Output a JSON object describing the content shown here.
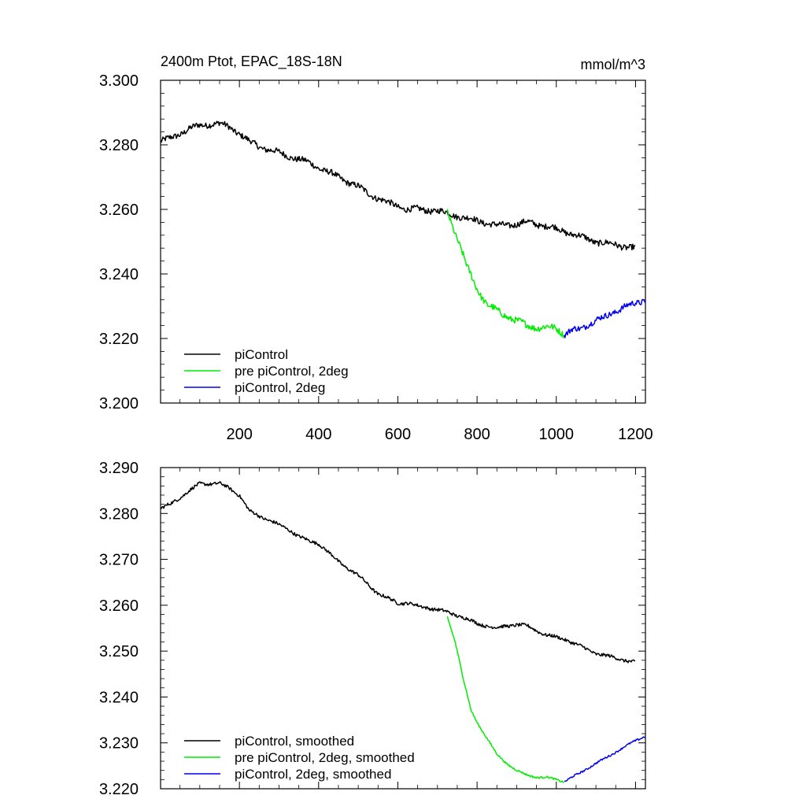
{
  "chart_data": [
    {
      "type": "line",
      "title_left": "2400m Ptot, EPAC_18S-18N",
      "title_right": "mmol/m^3",
      "xlim": [
        1,
        1225
      ],
      "ylim": [
        3.2,
        3.3
      ],
      "y_ticks": [
        {
          "value": 3.2,
          "label": "3.200"
        },
        {
          "value": 3.22,
          "label": "3.220"
        },
        {
          "value": 3.24,
          "label": "3.240"
        },
        {
          "value": 3.26,
          "label": "3.260"
        },
        {
          "value": 3.28,
          "label": "3.280"
        },
        {
          "value": 3.3,
          "label": "3.300"
        }
      ],
      "x_ticks": [
        {
          "value": 200,
          "label": "200"
        },
        {
          "value": 400,
          "label": "400"
        },
        {
          "value": 600,
          "label": "600"
        },
        {
          "value": 800,
          "label": "800"
        },
        {
          "value": 1000,
          "label": "1000"
        },
        {
          "value": 1200,
          "label": "1200"
        }
      ],
      "series": [
        {
          "name": "piControl",
          "color": "#000000",
          "x": [
            1,
            25,
            50,
            75,
            100,
            125,
            150,
            175,
            200,
            225,
            250,
            275,
            300,
            325,
            350,
            375,
            400,
            425,
            450,
            475,
            500,
            525,
            550,
            575,
            600,
            625,
            650,
            675,
            700,
            725,
            750,
            775,
            800,
            825,
            850,
            875,
            900,
            925,
            950,
            975,
            1000,
            1025,
            1050,
            1075,
            1100,
            1125,
            1150,
            1175,
            1200
          ],
          "y": [
            3.281,
            3.282,
            3.2835,
            3.285,
            3.286,
            3.2865,
            3.2865,
            3.2855,
            3.2835,
            3.281,
            3.2795,
            3.2785,
            3.2775,
            3.2765,
            3.2755,
            3.2745,
            3.273,
            3.2715,
            3.27,
            3.2685,
            3.267,
            3.265,
            3.2635,
            3.262,
            3.261,
            3.26,
            3.26,
            3.2598,
            3.2595,
            3.2588,
            3.258,
            3.2572,
            3.2565,
            3.2558,
            3.255,
            3.2552,
            3.2555,
            3.256,
            3.2555,
            3.2548,
            3.254,
            3.253,
            3.252,
            3.251,
            3.25,
            3.2495,
            3.249,
            3.2485,
            3.248
          ]
        },
        {
          "name": "pre piControl, 2deg",
          "color": "#00ee00",
          "x": [
            725,
            750,
            775,
            800,
            825,
            850,
            875,
            900,
            925,
            950,
            975,
            1000,
            1020
          ],
          "y": [
            3.2595,
            3.251,
            3.242,
            3.2355,
            3.2305,
            3.2285,
            3.227,
            3.2255,
            3.224,
            3.2235,
            3.2235,
            3.223,
            3.2215
          ]
        },
        {
          "name": "piControl, 2deg",
          "color": "#0000ee",
          "x": [
            1020,
            1040,
            1060,
            1080,
            1100,
            1120,
            1140,
            1160,
            1180,
            1200,
            1225
          ],
          "y": [
            3.221,
            3.2225,
            3.223,
            3.2245,
            3.2255,
            3.2265,
            3.228,
            3.229,
            3.23,
            3.231,
            3.232
          ]
        }
      ],
      "noise": [
        0.0018,
        0.002,
        0.0018
      ],
      "legend": [
        {
          "label": "piControl",
          "color": "#000000"
        },
        {
          "label": "pre piControl, 2deg",
          "color": "#00ee00"
        },
        {
          "label": "piControl, 2deg",
          "color": "#0000ee"
        }
      ],
      "legend_placement": "bottom-left"
    },
    {
      "type": "line",
      "xlim": [
        1,
        1225
      ],
      "ylim": [
        3.22,
        3.29
      ],
      "y_ticks": [
        {
          "value": 3.22,
          "label": "3.220"
        },
        {
          "value": 3.23,
          "label": "3.230"
        },
        {
          "value": 3.24,
          "label": "3.240"
        },
        {
          "value": 3.25,
          "label": "3.250"
        },
        {
          "value": 3.26,
          "label": "3.260"
        },
        {
          "value": 3.27,
          "label": "3.270"
        },
        {
          "value": 3.28,
          "label": "3.280"
        },
        {
          "value": 3.29,
          "label": "3.290"
        }
      ],
      "x_ticks": [
        {
          "value": 200,
          "label": ""
        },
        {
          "value": 400,
          "label": ""
        },
        {
          "value": 600,
          "label": ""
        },
        {
          "value": 800,
          "label": ""
        },
        {
          "value": 1000,
          "label": ""
        },
        {
          "value": 1200,
          "label": ""
        }
      ],
      "series": [
        {
          "name": "piControl, smoothed",
          "color": "#000000",
          "x": [
            1,
            25,
            50,
            75,
            100,
            125,
            150,
            175,
            200,
            225,
            250,
            275,
            300,
            325,
            350,
            375,
            400,
            425,
            450,
            475,
            500,
            525,
            550,
            575,
            600,
            625,
            650,
            675,
            700,
            725,
            750,
            775,
            800,
            825,
            850,
            875,
            900,
            925,
            950,
            975,
            1000,
            1025,
            1050,
            1075,
            1100,
            1125,
            1150,
            1175,
            1200
          ],
          "y": [
            3.281,
            3.282,
            3.2835,
            3.285,
            3.2865,
            3.2865,
            3.2865,
            3.2855,
            3.284,
            3.2805,
            3.2795,
            3.2785,
            3.2775,
            3.2765,
            3.275,
            3.274,
            3.2735,
            3.2715,
            3.2695,
            3.268,
            3.2665,
            3.2645,
            3.2625,
            3.2615,
            3.2605,
            3.2605,
            3.2598,
            3.2595,
            3.259,
            3.2585,
            3.2578,
            3.257,
            3.256,
            3.2555,
            3.255,
            3.2555,
            3.2558,
            3.2555,
            3.2545,
            3.2535,
            3.253,
            3.2525,
            3.2515,
            3.2505,
            3.2495,
            3.249,
            3.2485,
            3.248,
            3.2475
          ]
        },
        {
          "name": "pre piControl, 2deg, smoothed",
          "color": "#00ee00",
          "x": [
            725,
            745,
            765,
            785,
            800,
            825,
            850,
            875,
            900,
            925,
            950,
            975,
            1000,
            1020
          ],
          "y": [
            3.2575,
            3.252,
            3.244,
            3.237,
            3.2345,
            3.231,
            3.2275,
            3.2255,
            3.224,
            3.223,
            3.2225,
            3.2225,
            3.222,
            3.2215
          ]
        },
        {
          "name": "piControl, 2deg, smoothed",
          "color": "#0000ee",
          "x": [
            1020,
            1040,
            1060,
            1080,
            1100,
            1120,
            1140,
            1160,
            1180,
            1200,
            1225
          ],
          "y": [
            3.2215,
            3.2225,
            3.2235,
            3.2245,
            3.2255,
            3.2265,
            3.2275,
            3.2285,
            3.2295,
            3.2305,
            3.2315
          ]
        }
      ],
      "noise": [
        0.0007,
        0.0004,
        0.0004
      ],
      "legend": [
        {
          "label": "piControl, smoothed",
          "color": "#000000"
        },
        {
          "label": "pre piControl, 2deg, smoothed",
          "color": "#00ee00"
        },
        {
          "label": "piControl, 2deg, smoothed",
          "color": "#0000ee"
        }
      ],
      "legend_placement": "bottom-left"
    }
  ]
}
